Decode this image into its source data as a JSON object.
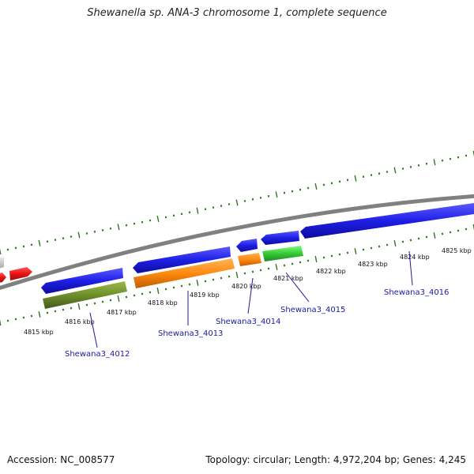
{
  "title": "Shewanella sp. ANA-3 chromosome 1, complete sequence",
  "footer": {
    "accession": "Accession: NC_008577",
    "summary": "Topology: circular; Length: 4,972,204 bp; Genes: 4,245"
  },
  "colors": {
    "forward_gene": "#1f1fe6",
    "reverse_gene_orange": "#ff8a10",
    "reverse_gene_green": "#36c936",
    "reverse_gene_olive": "#6f8f2a",
    "red_gene": "#e81212",
    "grey_gene": "#c8c8c8",
    "backbone": "#808080",
    "ticks": "#2a7a1a",
    "gene_label": "#1a1aa0"
  },
  "scale": {
    "unit": "kbp",
    "labels": [
      "4815 kbp",
      "4816 kbp",
      "4817 kbp",
      "4818 kbp",
      "4819 kbp",
      "4820 kbp",
      "4821 kbp",
      "4822 kbp",
      "4823 kbp",
      "4824 kbp",
      "4825 kbp"
    ]
  },
  "gene_labels": [
    "Shewana3_4012",
    "Shewana3_4013",
    "Shewana3_4014",
    "Shewana3_4015",
    "Shewana3_4016"
  ]
}
